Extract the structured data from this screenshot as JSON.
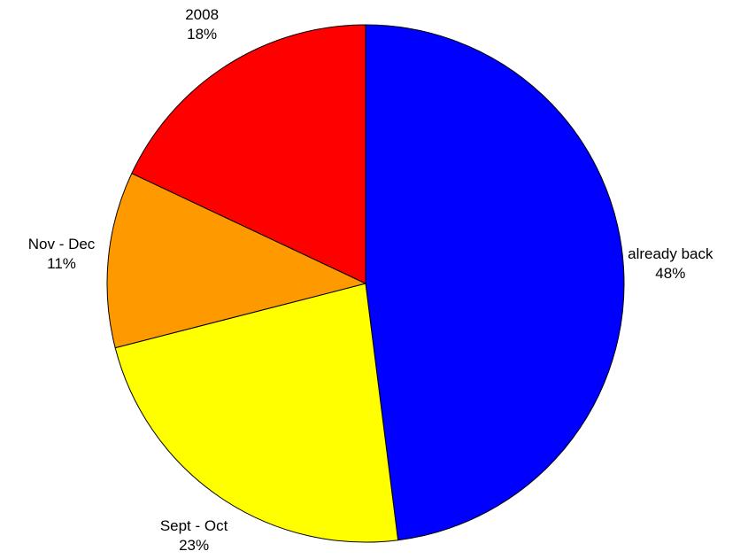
{
  "chart_data": {
    "type": "pie",
    "categories": [
      "already back",
      "Sept - Oct",
      "Nov - Dec",
      "2008"
    ],
    "values": [
      48,
      23,
      11,
      18
    ],
    "value_labels": [
      "48%",
      "23%",
      "11%",
      "18%"
    ],
    "colors": [
      "#0000ff",
      "#ffff00",
      "#ff9900",
      "#ff0000"
    ]
  }
}
